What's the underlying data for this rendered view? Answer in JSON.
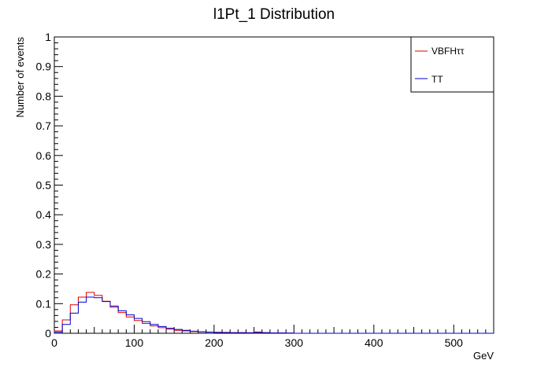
{
  "chart_data": {
    "type": "line",
    "title": "l1Pt_1 Distribution",
    "xlabel": "GeV",
    "ylabel": "Number of events",
    "xlim": [
      0,
      550
    ],
    "ylim": [
      0,
      1
    ],
    "x_ticks": [
      "0",
      "100",
      "200",
      "300",
      "400",
      "500"
    ],
    "y_ticks": [
      "0",
      "0.1",
      "0.2",
      "0.3",
      "0.4",
      "0.5",
      "0.6",
      "0.7",
      "0.8",
      "0.9",
      "1"
    ],
    "bin_width": 10,
    "grid": false,
    "legend": {
      "position": "top-right"
    },
    "series": [
      {
        "name": "VBFHττ",
        "color": "#e00000",
        "style": "step",
        "values": [
          0.008,
          0.045,
          0.096,
          0.122,
          0.138,
          0.128,
          0.108,
          0.088,
          0.07,
          0.055,
          0.043,
          0.033,
          0.025,
          0.019,
          0.014,
          0.01,
          0.008,
          0.006,
          0.005,
          0.004,
          0.003,
          0.003,
          0.002,
          0.002,
          0.002,
          0.003,
          0.002,
          0.001,
          0.001,
          0.0005
        ]
      },
      {
        "name": "TT",
        "color": "#0000cc",
        "style": "step",
        "values": [
          0.004,
          0.03,
          0.068,
          0.105,
          0.122,
          0.12,
          0.107,
          0.092,
          0.076,
          0.062,
          0.05,
          0.039,
          0.03,
          0.023,
          0.017,
          0.013,
          0.01,
          0.007,
          0.005,
          0.004,
          0.003,
          0.002,
          0.002,
          0.002,
          0.001,
          0.004,
          0.002,
          0.001,
          0.001,
          0.0005
        ]
      }
    ]
  }
}
